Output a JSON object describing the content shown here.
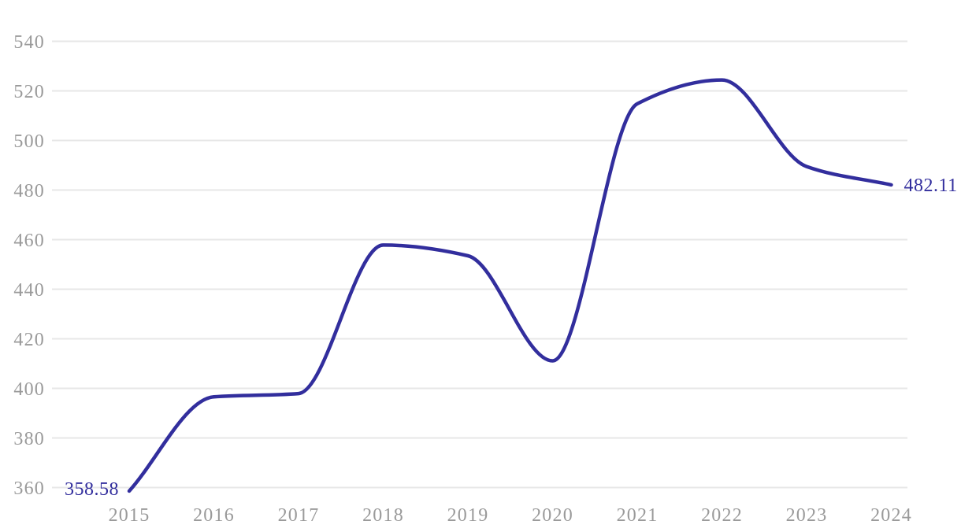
{
  "chart_data": {
    "type": "line",
    "title": "",
    "xlabel": "",
    "ylabel": "",
    "x": [
      "2015",
      "2016",
      "2017",
      "2018",
      "2019",
      "2020",
      "2021",
      "2022",
      "2023",
      "2024"
    ],
    "series": [
      {
        "name": "value",
        "values": [
          358.58,
          396.6,
          397.9,
          457.8,
          453.5,
          411.1,
          514.8,
          524.4,
          489.5,
          482.11
        ]
      }
    ],
    "ylim": [
      360,
      540
    ],
    "y_ticks": [
      540,
      520,
      500,
      480,
      460,
      440,
      420,
      400,
      380,
      360
    ],
    "grid": true,
    "legend": "none",
    "smooth": true,
    "point_labels": {
      "first": "358.58",
      "last": "482.11"
    },
    "colors": {
      "line": "#322e9d",
      "value_label": "#322e9d",
      "tick_label": "#9a9a9a",
      "gridline": "#e7e7e7",
      "background": "#ffffff"
    }
  }
}
